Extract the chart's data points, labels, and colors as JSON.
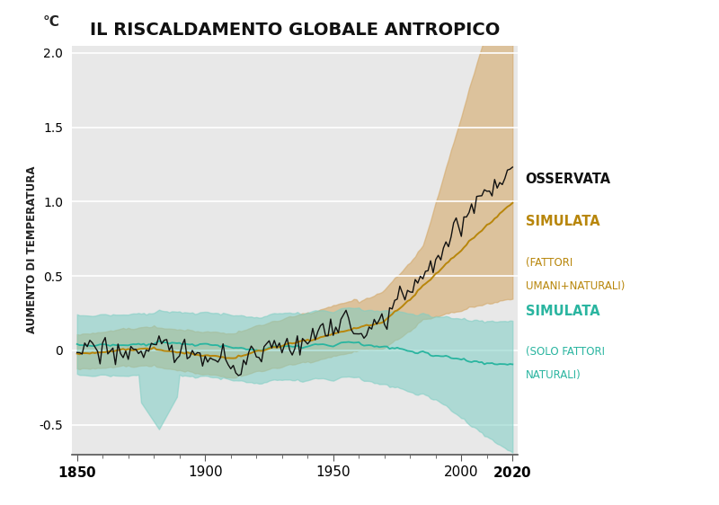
{
  "title": "IL RISCALDAMENTO GLOBALE ANTROPICO",
  "ylabel": "AUMENTO DI TEMPERATURA",
  "temp_unit": "°C",
  "year_start": 1850,
  "year_end": 2020,
  "ylim": [
    -0.7,
    2.05
  ],
  "yticks": [
    -0.5,
    0.0,
    0.5,
    1.0,
    1.5,
    2.0
  ],
  "xticks": [
    1850,
    1900,
    1950,
    2000,
    2020
  ],
  "fig_bg_color": "#ffffff",
  "plot_bg_color": "#e8e8e8",
  "observed_color": "#111111",
  "human_natural_color": "#b8860b",
  "natural_color": "#2ab5a0",
  "human_natural_band_color": "#d4a96a",
  "natural_band_color": "#7ecec4",
  "label_osservata": "OSSERVATA",
  "label_simulata_hn": "SIMULATA",
  "label_simulata_hn_sub": "(FATTORI\nUMANI+NATURALI)",
  "label_simulata_n": "SIMULATA",
  "label_simulata_n_sub": "(SOLO FATTORI\nNATURALI)"
}
